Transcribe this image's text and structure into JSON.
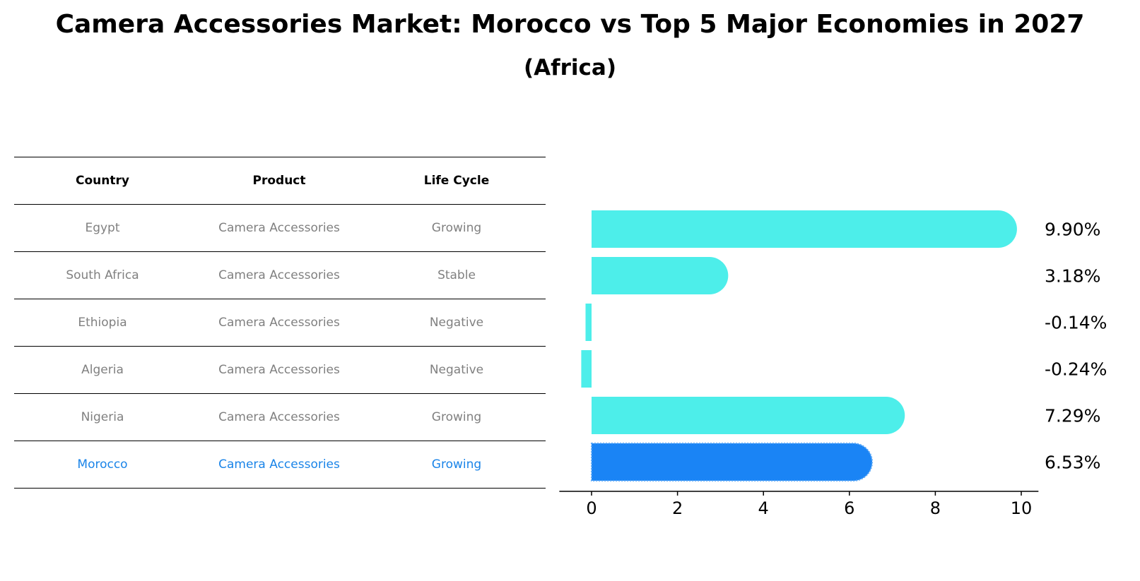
{
  "title": "Camera Accessories Market: Morocco vs Top 5 Major Economies in 2027",
  "subtitle": "(Africa)",
  "table": {
    "headers": [
      "Country",
      "Product",
      "Life Cycle"
    ],
    "rows": [
      [
        "Egypt",
        "Camera Accessories",
        "Growing"
      ],
      [
        "South Africa",
        "Camera Accessories",
        "Stable"
      ],
      [
        "Ethiopia",
        "Camera Accessories",
        "Negative"
      ],
      [
        "Algeria",
        "Camera Accessories",
        "Negative"
      ],
      [
        "Nigeria",
        "Camera Accessories",
        "Growing"
      ],
      [
        "Morocco",
        "Camera Accessories",
        "Growing"
      ]
    ],
    "highlight_row": 5
  },
  "chart_data": {
    "type": "bar",
    "orientation": "horizontal",
    "categories": [
      "Egypt",
      "South Africa",
      "Ethiopia",
      "Algeria",
      "Nigeria",
      "Morocco"
    ],
    "values": [
      9.9,
      3.18,
      -0.14,
      -0.24,
      7.29,
      6.53
    ],
    "labels": [
      "9.90%",
      "3.18%",
      "-0.14%",
      "-0.24%",
      "7.29%",
      "6.53%"
    ],
    "highlight": "Morocco",
    "xlim": [
      -0.75,
      10.4
    ],
    "xticks": [
      "0",
      "2",
      "4",
      "6",
      "8",
      "10"
    ],
    "colors": {
      "default": "#4deeea",
      "highlight": "#1a84f5"
    }
  }
}
